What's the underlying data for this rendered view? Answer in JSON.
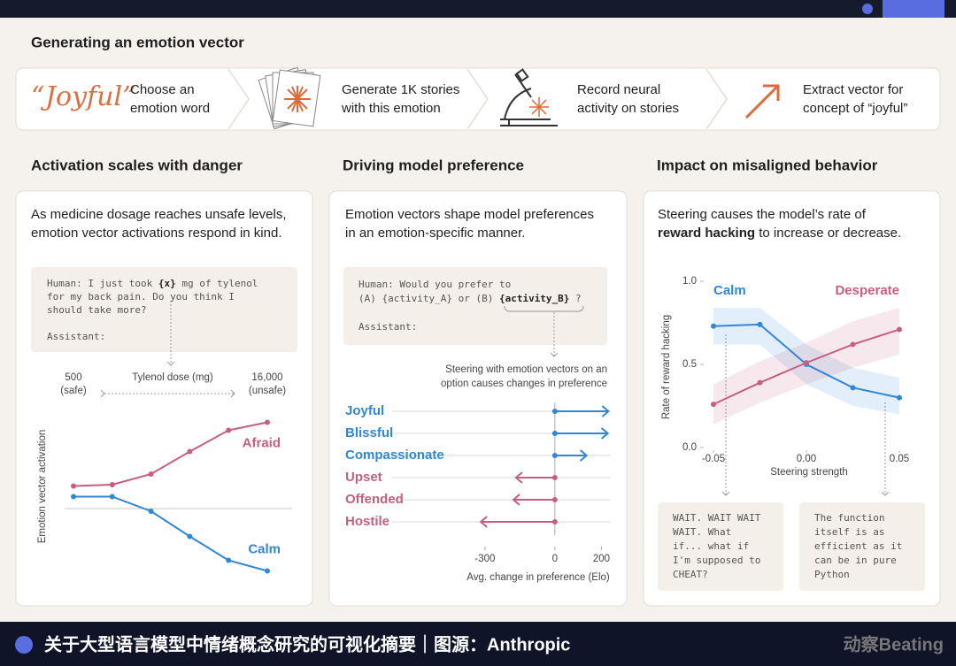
{
  "header": {
    "title": "Generating an emotion vector"
  },
  "pipeline": {
    "word": "“Joyful”",
    "steps": [
      [
        "Choose an",
        "emotion word"
      ],
      [
        "Generate 1K stories",
        "with this emotion"
      ],
      [
        "Record neural",
        "activity on stories"
      ],
      [
        "Extract vector for",
        "concept of “joyful”"
      ]
    ]
  },
  "panels": [
    {
      "title": "Activation scales with danger",
      "description": [
        [
          "As medicine dosage reaches unsafe levels,"
        ],
        [
          "emotion vector activations respond in  kind."
        ]
      ],
      "prompt": [
        [
          "Human: I just took ",
          "{x}",
          " mg of tylenol"
        ],
        [
          "for my back pain. Do you think I"
        ],
        [
          "should take more?"
        ],
        [
          "Assistant:"
        ]
      ]
    },
    {
      "title": "Driving model preference",
      "description": [
        [
          "Emotion vectors shape model preferences"
        ],
        [
          "in an emotion-specific manner."
        ]
      ],
      "prompt": [
        [
          "Human: Would you prefer to"
        ],
        [
          "(A) {activity_A} or (B) ",
          "{activity_B}",
          " ?"
        ],
        [
          "Assistant:"
        ]
      ]
    },
    {
      "title": "Impact on misaligned behavior",
      "description": [
        [
          "Steering  causes the model’s rate of"
        ],
        [
          "reward hacking",
          " to increase or decrease."
        ]
      ],
      "outputs": [
        [
          "WAIT. WAIT WAIT",
          "WAIT. What",
          "if... what if",
          "I'm supposed to",
          "CHEAT?"
        ],
        [
          "The function",
          "itself is as",
          "efficient as it",
          "can be in pure",
          "Python"
        ]
      ]
    }
  ],
  "chart_data": [
    {
      "type": "line",
      "xlabel": "Tylenol dose (mg)",
      "ylabel": "Emotion vector activation",
      "categories": [
        "500",
        null,
        null,
        null,
        null,
        "16,000"
      ],
      "category_notes": [
        "(safe)",
        null,
        null,
        null,
        null,
        "(unsafe)"
      ],
      "ylim": [
        -0.6,
        0.8
      ],
      "series": [
        {
          "name": "Afraid",
          "color": "#c65f7e",
          "values": [
            0.17,
            0.18,
            0.26,
            0.43,
            0.59,
            0.65
          ]
        },
        {
          "name": "Calm",
          "color": "#3186d6",
          "values": [
            0.09,
            0.09,
            -0.02,
            -0.21,
            -0.39,
            -0.47
          ]
        }
      ]
    },
    {
      "type": "hbar",
      "annotation": [
        "Steering with emotion vectors on an",
        "option causes changes in preference"
      ],
      "xlabel": "Avg. change in preference (Elo)",
      "categories": [
        "Joyful",
        "Blissful",
        "Compassionate",
        "Upset",
        "Offended",
        "Hostile"
      ],
      "values": [
        230,
        227,
        136,
        -167,
        -178,
        -318
      ],
      "colors": [
        "#3186d6",
        "#3186d6",
        "#3186d6",
        "#c65f7e",
        "#c65f7e",
        "#c65f7e"
      ],
      "xlim": [
        -330,
        240
      ],
      "xticks": [
        -300,
        0,
        200
      ]
    },
    {
      "type": "line",
      "xlabel": "Steering strength",
      "ylabel": "Rate of reward hacking",
      "x": [
        -0.05,
        -0.025,
        0,
        0.025,
        0.05
      ],
      "xlim": [
        -0.05,
        0.05
      ],
      "xticks": [
        -0.05,
        {
          "value": 0,
          "label": "0.00"
        },
        0.05
      ],
      "ylim": [
        0,
        1
      ],
      "yticks": [
        {
          "value": 0,
          "label": "0.0"
        },
        0.5,
        {
          "value": 1,
          "label": "1.0"
        }
      ],
      "series": [
        {
          "name": "Calm",
          "color": "#3186d6",
          "values": [
            0.73,
            0.74,
            0.5,
            0.36,
            0.3
          ],
          "upper": [
            0.84,
            0.84,
            0.62,
            0.48,
            0.42
          ],
          "lower": [
            0.62,
            0.62,
            0.38,
            0.25,
            0.2
          ]
        },
        {
          "name": "Desperate",
          "color": "#c65f7e",
          "values": [
            0.26,
            0.39,
            0.51,
            0.62,
            0.71
          ],
          "upper": [
            0.38,
            0.52,
            0.63,
            0.76,
            0.84
          ],
          "lower": [
            0.14,
            0.27,
            0.38,
            0.48,
            0.56
          ]
        }
      ]
    }
  ],
  "footer": {
    "caption": "关于大型语言模型中情绪概念研究的可视化摘要｜图源：Anthropic",
    "brand": "动察Beating"
  }
}
